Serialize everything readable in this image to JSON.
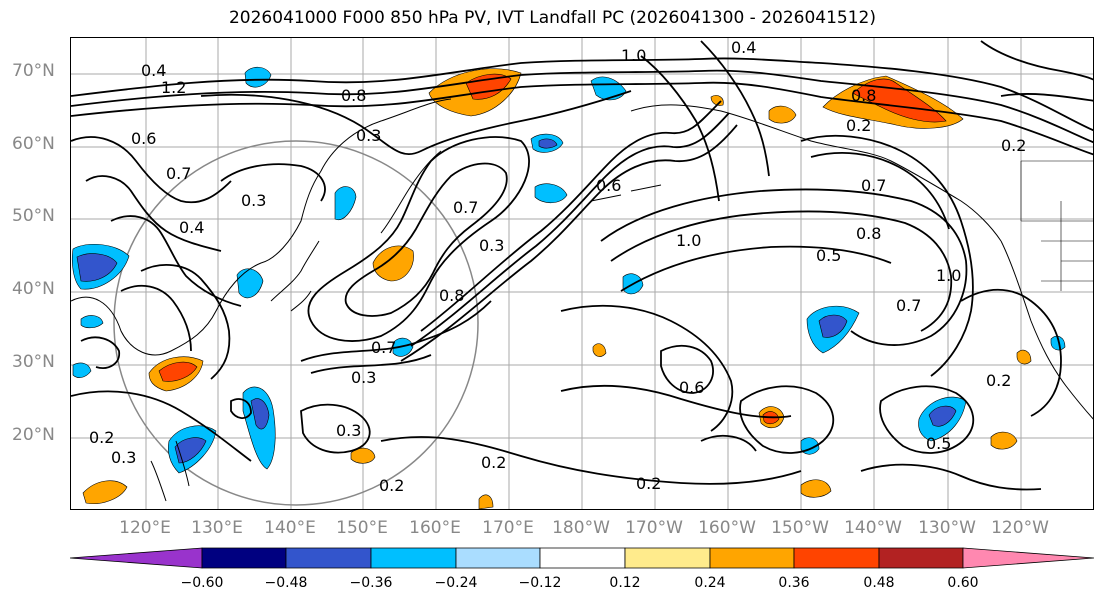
{
  "title": "2026041000 F000 850 hPa PV, IVT Landfall PC (2026041300 - 2026041512)",
  "lat_labels": [
    "70°N",
    "60°N",
    "50°N",
    "40°N",
    "30°N",
    "20°N"
  ],
  "lon_labels": [
    "120°E",
    "130°E",
    "140°E",
    "150°E",
    "160°E",
    "170°E",
    "180°W",
    "170°W",
    "160°W",
    "150°W",
    "140°W",
    "130°W",
    "120°W"
  ],
  "contour_labels": [
    "0.4",
    "1.2",
    "0.8",
    "0.3",
    "0.6",
    "0.7",
    "0.4",
    "0.3",
    "0.7",
    "0.3",
    "0.8",
    "0.7",
    "0.3",
    "1.0",
    "0.6",
    "0.8",
    "0.2",
    "0.7",
    "1.0",
    "0.5",
    "0.8",
    "1.0",
    "0.7",
    "0.6",
    "0.2",
    "0.3",
    "0.2",
    "0.2",
    "0.5",
    "0.3",
    "0.2",
    "0.2",
    "0.4",
    "0.2"
  ],
  "colorbar": {
    "colors": [
      "#9933cc",
      "#000080",
      "#3355cc",
      "#00bfff",
      "#aaddff",
      "#ffffff",
      "#ffeb8c",
      "#ffa500",
      "#ff4400",
      "#b22222",
      "#ff88b0"
    ],
    "ticks": [
      "−0.60",
      "−0.48",
      "−0.36",
      "−0.24",
      "−0.12",
      "0.12",
      "0.24",
      "0.36",
      "0.48",
      "0.60"
    ]
  }
}
